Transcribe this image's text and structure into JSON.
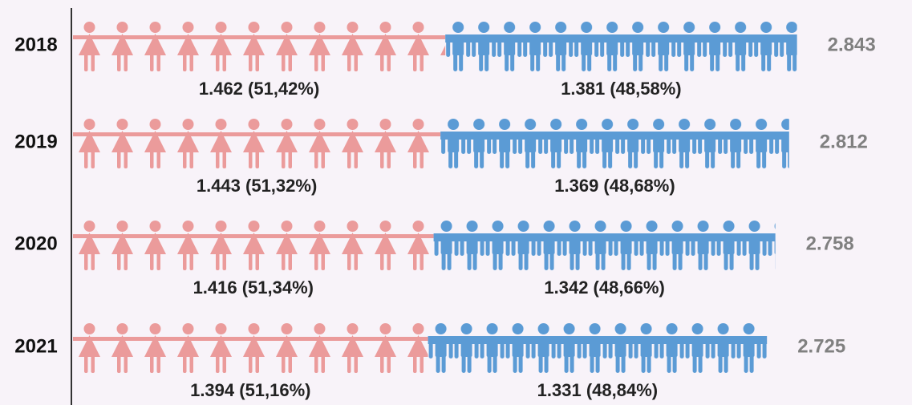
{
  "chart_data": {
    "type": "pictogram",
    "categories": [
      "2018",
      "2019",
      "2020",
      "2021"
    ],
    "series": [
      {
        "color": "#eb9b9b",
        "values": [
          1462,
          1443,
          1416,
          1394
        ],
        "value_labels": [
          "1.462 (51,42%)",
          "1.443 (51,32%)",
          "1.416 (51,34%)",
          "1.394 (51,16%)"
        ]
      },
      {
        "color": "#5b9bd5",
        "values": [
          1381,
          1369,
          1342,
          1331
        ],
        "value_labels": [
          "1.381 (48,58%)",
          "1.369 (48,68%)",
          "1.342 (48,66%)",
          "1.331 (48,84%)"
        ]
      }
    ],
    "totals": {
      "values": [
        2843,
        2812,
        2758,
        2725
      ],
      "value_labels": [
        "2.843",
        "2.812",
        "2.758",
        "2.725"
      ]
    }
  }
}
